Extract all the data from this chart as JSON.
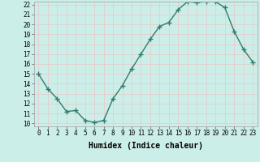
{
  "title": "",
  "xlabel": "Humidex (Indice chaleur)",
  "ylabel": "",
  "x": [
    0,
    1,
    2,
    3,
    4,
    5,
    6,
    7,
    8,
    9,
    10,
    11,
    12,
    13,
    14,
    15,
    16,
    17,
    18,
    19,
    20,
    21,
    22,
    23
  ],
  "y": [
    15,
    13.5,
    12.5,
    11.2,
    11.3,
    10.3,
    10.1,
    10.3,
    12.5,
    13.8,
    15.5,
    17.0,
    18.5,
    19.8,
    20.2,
    21.5,
    22.3,
    22.2,
    22.3,
    22.3,
    21.7,
    19.3,
    17.5,
    16.2
  ],
  "line_color": "#2e7d6e",
  "marker": "+",
  "marker_size": 4,
  "bg_color": "#cceee8",
  "grid_color": "#e8c8c8",
  "ylim": [
    10,
    22
  ],
  "xlim": [
    -0.5,
    23.5
  ],
  "yticks": [
    10,
    11,
    12,
    13,
    14,
    15,
    16,
    17,
    18,
    19,
    20,
    21,
    22
  ],
  "xticks": [
    0,
    1,
    2,
    3,
    4,
    5,
    6,
    7,
    8,
    9,
    10,
    11,
    12,
    13,
    14,
    15,
    16,
    17,
    18,
    19,
    20,
    21,
    22,
    23
  ],
  "xtick_labels": [
    "0",
    "1",
    "2",
    "3",
    "4",
    "5",
    "6",
    "7",
    "8",
    "9",
    "10",
    "11",
    "12",
    "13",
    "14",
    "15",
    "16",
    "17",
    "18",
    "19",
    "20",
    "21",
    "22",
    "23"
  ],
  "ytick_labels": [
    "10",
    "11",
    "12",
    "13",
    "14",
    "15",
    "16",
    "17",
    "18",
    "19",
    "20",
    "21",
    "22"
  ],
  "tick_fontsize": 5.5,
  "xlabel_fontsize": 7,
  "line_width": 1.0
}
